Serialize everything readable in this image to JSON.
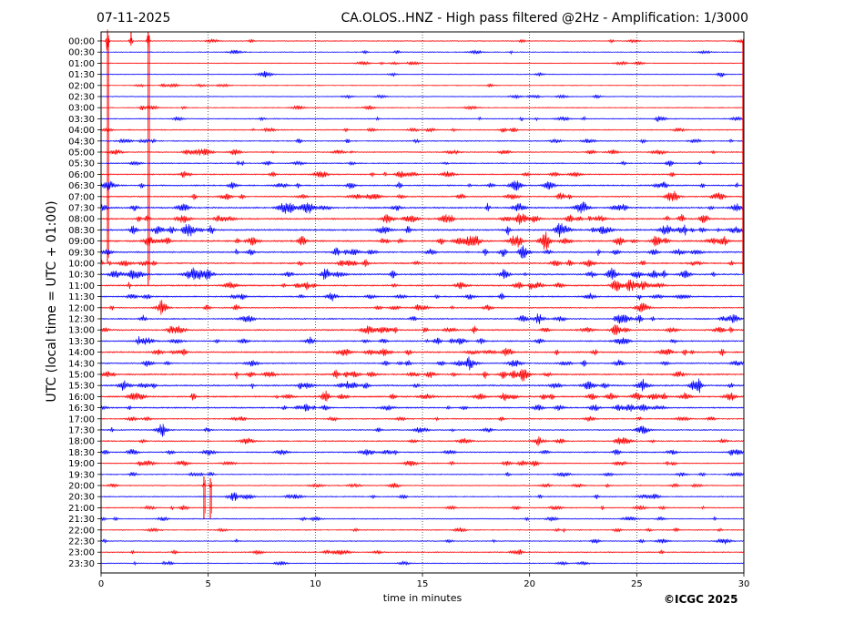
{
  "header": {
    "date": "07-11-2025",
    "title": "CA.OLOS..HNZ - High pass filtered @2Hz - Amplification: 1/3000"
  },
  "footer": {
    "copyright": "©ICGC 2025"
  },
  "chart_data": {
    "type": "line",
    "title": "CA.OLOS..HNZ - High pass filtered @2Hz - Amplification: 1/3000",
    "xlabel": "time in minutes",
    "ylabel": "UTC (local time = UTC + 01:00)",
    "xlim": [
      0,
      30
    ],
    "x_ticks": [
      0,
      5,
      10,
      15,
      20,
      25,
      30
    ],
    "x_gridlines": "dotted vertical at 5-minute intervals",
    "row_labels": [
      "00:00",
      "00:30",
      "01:00",
      "01:30",
      "02:00",
      "02:30",
      "03:00",
      "03:30",
      "04:00",
      "04:30",
      "05:00",
      "05:30",
      "06:00",
      "06:30",
      "07:00",
      "07:30",
      "08:00",
      "08:30",
      "09:00",
      "09:30",
      "10:00",
      "10:30",
      "11:00",
      "11:30",
      "12:00",
      "12:30",
      "13:00",
      "13:30",
      "14:00",
      "14:30",
      "15:00",
      "15:30",
      "16:00",
      "16:30",
      "17:00",
      "17:30",
      "18:00",
      "18:30",
      "19:00",
      "19:30",
      "20:00",
      "20:30",
      "21:00",
      "21:30",
      "22:00",
      "22:30",
      "23:00",
      "23:30"
    ],
    "trace_colors": [
      "#ff0000",
      "#0000ff"
    ],
    "series_description": "one seismic trace per 30-minute row, colours alternating red and blue",
    "row_activity": [
      0.15,
      0.15,
      0.15,
      0.15,
      0.15,
      0.15,
      0.2,
      0.3,
      0.3,
      0.35,
      0.4,
      0.3,
      0.5,
      0.6,
      0.6,
      0.7,
      0.8,
      0.85,
      0.9,
      0.7,
      0.7,
      0.8,
      0.7,
      0.6,
      0.5,
      0.6,
      0.7,
      0.6,
      0.7,
      0.6,
      0.7,
      0.8,
      0.8,
      0.6,
      0.4,
      0.4,
      0.45,
      0.5,
      0.4,
      0.3,
      0.3,
      0.35,
      0.3,
      0.3,
      0.3,
      0.25,
      0.3,
      0.2
    ],
    "events": [
      {
        "row": 0,
        "t": 0.3,
        "amp": 45,
        "up": 2,
        "down": 20
      },
      {
        "row": 0,
        "t": 1.4,
        "amp": 30,
        "up": 2,
        "down": 0
      },
      {
        "row": 0,
        "t": 2.2,
        "amp": 35,
        "up": 2,
        "down": 22
      },
      {
        "row": 7,
        "t": 12.9,
        "amp": 5,
        "up": 0,
        "down": 0
      },
      {
        "row": 8,
        "t": 7.1,
        "amp": 4,
        "up": 0,
        "down": 0
      },
      {
        "row": 9,
        "t": 9.2,
        "amp": 6,
        "up": 0,
        "down": 0
      },
      {
        "row": 10,
        "t": 8.0,
        "amp": 4,
        "up": 0,
        "down": 0
      },
      {
        "row": 10,
        "t": 11.7,
        "amp": 4,
        "up": 0,
        "down": 0
      },
      {
        "row": 11,
        "t": 6.6,
        "amp": 9,
        "up": 0,
        "down": 0
      },
      {
        "row": 13,
        "t": 17.2,
        "amp": 6,
        "up": 0,
        "down": 0
      },
      {
        "row": 17,
        "t": 28.8,
        "amp": 6,
        "up": 0,
        "down": 0
      },
      {
        "row": 18,
        "t": 13.1,
        "amp": 7,
        "up": 0,
        "down": 0
      },
      {
        "row": 21,
        "t": 18.8,
        "amp": 7,
        "up": 0,
        "down": 0
      },
      {
        "row": 21,
        "t": 19.8,
        "amp": 7,
        "up": 0,
        "down": 0
      },
      {
        "row": 23,
        "t": 18.7,
        "amp": 6,
        "up": 0,
        "down": 0
      },
      {
        "row": 27,
        "t": 15.2,
        "amp": 6,
        "up": 0,
        "down": 0
      },
      {
        "row": 30,
        "t": 0.6,
        "amp": 6,
        "up": 0,
        "down": 0
      },
      {
        "row": 32,
        "t": 8.2,
        "amp": 6,
        "up": 0,
        "down": 0
      },
      {
        "row": 32,
        "t": 11.5,
        "amp": 6,
        "up": 0,
        "down": 0
      },
      {
        "row": 33,
        "t": 16.2,
        "amp": 5,
        "up": 0,
        "down": 0
      },
      {
        "row": 36,
        "t": 29.0,
        "amp": 4,
        "up": 0,
        "down": 0
      },
      {
        "row": 40,
        "t": 4.8,
        "amp": 10,
        "up": 0,
        "down": 3
      },
      {
        "row": 40,
        "t": 5.1,
        "amp": 8,
        "up": 0,
        "down": 3
      }
    ]
  }
}
